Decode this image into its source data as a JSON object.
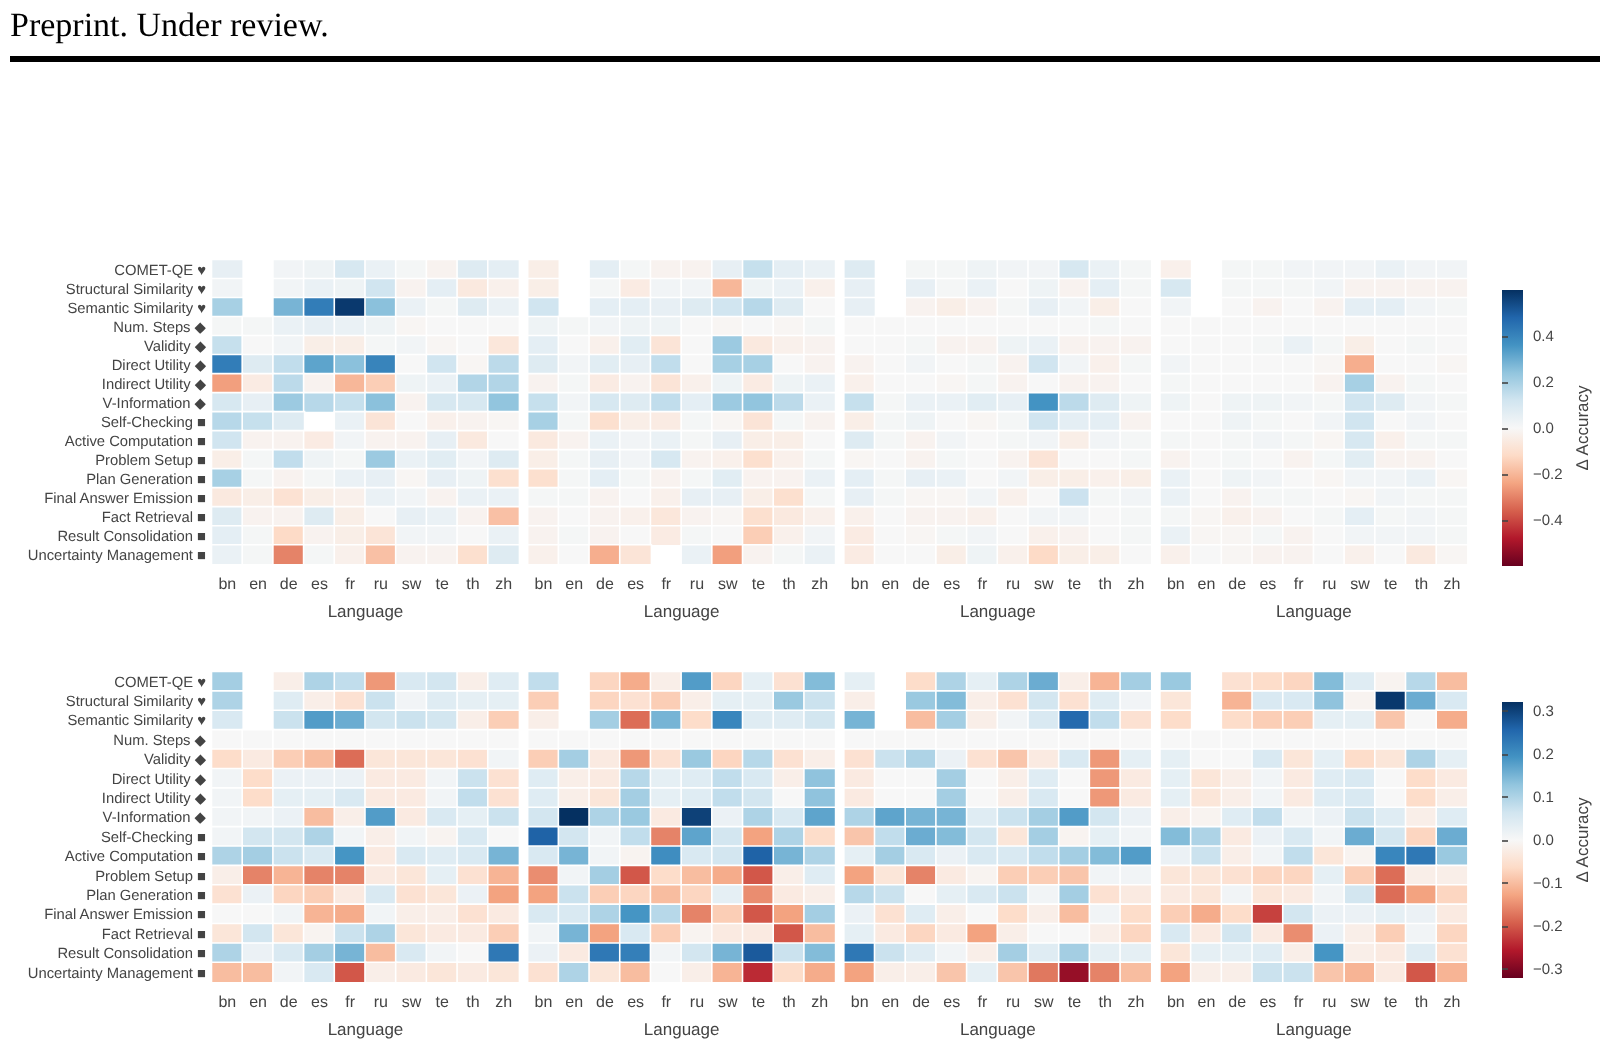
{
  "chart_data": [
    {
      "type": "heatmap",
      "annotations": [
        "Preprint. Under review."
      ],
      "xlabel": "Language",
      "categories": [
        "bn",
        "en",
        "de",
        "es",
        "fr",
        "ru",
        "sw",
        "te",
        "th",
        "zh",
        null,
        "bn",
        "en",
        "de",
        "es",
        "fr",
        "ru",
        "sw",
        "te",
        "th",
        "zh",
        null,
        "bn",
        "en",
        "de",
        "es",
        "fr",
        "ru",
        "sw",
        "te",
        "th",
        "zh",
        null,
        "bn",
        "en",
        "de",
        "es",
        "fr",
        "ru",
        "sw",
        "te",
        "th",
        "zh"
      ],
      "y_categories": [
        "COMET-QE ♥",
        "Structural Similarity ♥",
        "Semantic Similarity ♥",
        "Num. Steps ◆",
        "Validity ◆",
        "Direct Utility ◆",
        "Indirect Utility ◆",
        "V-Information ◆",
        "Self-Checking ■",
        "Active Computation ■",
        "Problem Setup ■",
        "Plan Generation ■",
        "Final Answer Emission ■",
        "Fact Retrieval ■",
        "Result Consolidation ■",
        "Uncertainty Management ■"
      ],
      "clim": [
        -0.6,
        0.6
      ],
      "clabel": "Δ Accuracy",
      "cticks": [
        0.4,
        0.2,
        {
          "value": 0,
          "label": "0.0"
        },
        {
          "value": -0.2,
          "label": "−0.2"
        },
        {
          "value": -0.4,
          "label": "−0.4"
        }
      ],
      "cells": [
        [
          0.05,
          null,
          0.02,
          0.03,
          0.1,
          0.04,
          0.01,
          -0.02,
          0.08,
          0.06,
          null,
          -0.04,
          null,
          0.06,
          0.01,
          -0.02,
          -0.02,
          0.05,
          0.14,
          0.06,
          0.04,
          null,
          0.08,
          null,
          0.01,
          0.01,
          0.03,
          0.02,
          0.02,
          0.1,
          0.04,
          0.01,
          null,
          -0.03,
          null,
          0.01,
          0.01,
          0.02,
          0.02,
          0.02,
          0.04,
          0.02,
          0.02
        ],
        [
          0.02,
          null,
          0.02,
          0.04,
          0.03,
          0.12,
          -0.02,
          0.06,
          -0.06,
          -0.03,
          null,
          -0.04,
          null,
          0.01,
          -0.05,
          0.02,
          0.02,
          -0.2,
          0.03,
          0.04,
          -0.03,
          null,
          0.05,
          null,
          0.05,
          0.01,
          0.04,
          0,
          0.03,
          -0.02,
          0.06,
          0.01,
          null,
          0.1,
          null,
          0.01,
          0.01,
          0.01,
          0.02,
          -0.02,
          -0.02,
          -0.02,
          -0.02
        ],
        [
          0.2,
          null,
          0.28,
          0.42,
          0.58,
          0.25,
          0.04,
          0.01,
          0.08,
          0.04,
          null,
          0.12,
          null,
          0.06,
          0.06,
          0.05,
          0.08,
          0.12,
          0.17,
          0.08,
          0,
          null,
          0.05,
          null,
          -0.02,
          -0.04,
          -0.02,
          0.01,
          0.05,
          0.02,
          -0.04,
          0,
          null,
          0.02,
          null,
          0,
          -0.02,
          0,
          -0.02,
          0.06,
          0.06,
          0.02,
          0.01
        ],
        [
          0.01,
          0.01,
          0.04,
          0.05,
          0.04,
          0.03,
          -0.01,
          0,
          0,
          0,
          null,
          0.03,
          0.01,
          0.02,
          0.03,
          0.03,
          0,
          -0.01,
          0,
          -0.01,
          0.01,
          null,
          0,
          0,
          0,
          0,
          0,
          0,
          0,
          0,
          0.01,
          0,
          null,
          0,
          0,
          0,
          0,
          0,
          0,
          0,
          0,
          0,
          0
        ],
        [
          0.14,
          0,
          0.02,
          -0.04,
          -0.04,
          0.01,
          0.02,
          -0.01,
          0,
          -0.07,
          null,
          0.06,
          0,
          -0.03,
          0.07,
          -0.08,
          0,
          0.22,
          -0.06,
          -0.03,
          -0.02,
          null,
          0,
          0,
          0.01,
          -0.02,
          -0.02,
          0.03,
          0.04,
          -0.02,
          -0.02,
          -0.02,
          null,
          0,
          0,
          0,
          0.01,
          0.04,
          0.01,
          -0.04,
          0,
          0.01,
          0
        ],
        [
          0.42,
          0.08,
          0.15,
          0.32,
          0.25,
          0.4,
          0,
          0.12,
          -0.01,
          0.16,
          null,
          0.08,
          0.02,
          0.07,
          0.05,
          0.15,
          0,
          0.2,
          0.2,
          0,
          -0.02,
          null,
          -0.02,
          0,
          0.02,
          0,
          0.01,
          -0.02,
          0.12,
          0.02,
          -0.03,
          0.01,
          null,
          0.02,
          0,
          0,
          0,
          0,
          -0.01,
          -0.22,
          0,
          0,
          -0.01
        ],
        [
          -0.25,
          -0.05,
          0.16,
          -0.02,
          -0.2,
          -0.15,
          0.03,
          0.04,
          0.18,
          0.18,
          null,
          -0.02,
          0.01,
          -0.05,
          -0.02,
          -0.08,
          -0.03,
          0.03,
          -0.05,
          0.03,
          0.04,
          null,
          -0.03,
          0,
          0,
          -0.01,
          0.01,
          -0.02,
          0,
          -0.02,
          -0.02,
          0,
          null,
          0.01,
          0,
          0,
          0,
          0,
          -0.02,
          0.2,
          -0.02,
          0.01,
          0
        ],
        [
          0.1,
          0.05,
          0.22,
          0.17,
          0.14,
          0.25,
          -0.02,
          0.1,
          0.1,
          0.24,
          null,
          0.14,
          0.02,
          0.1,
          0.08,
          0.15,
          0.06,
          0.22,
          0.24,
          0.16,
          0.04,
          null,
          0.14,
          0.01,
          0.04,
          0.04,
          0.07,
          0.05,
          0.36,
          0.16,
          0.08,
          0.03,
          null,
          0.03,
          0,
          0.03,
          0.03,
          0.02,
          0.01,
          0.12,
          0.08,
          0.02,
          0.01
        ],
        [
          0.17,
          0.14,
          0.08,
          null,
          0.04,
          -0.08,
          0,
          -0.03,
          -0.02,
          -0.01,
          null,
          0.2,
          0.01,
          -0.1,
          -0.04,
          -0.05,
          0.01,
          -0.01,
          -0.08,
          0.01,
          -0.02,
          null,
          -0.04,
          0.01,
          0.03,
          0,
          -0.01,
          0.01,
          0.12,
          0.06,
          0.06,
          -0.02,
          null,
          0,
          0,
          0.03,
          0.01,
          0,
          0.02,
          0.12,
          0,
          0.02,
          0
        ],
        [
          0.12,
          -0.02,
          -0.02,
          -0.05,
          0.02,
          -0.02,
          -0.02,
          0.05,
          -0.06,
          0,
          null,
          -0.06,
          -0.02,
          0.04,
          0.02,
          0.04,
          0.01,
          0.05,
          -0.04,
          -0.04,
          0,
          null,
          0.08,
          0.01,
          -0.02,
          0.02,
          0,
          0.01,
          0.02,
          -0.04,
          0.02,
          0.01,
          null,
          0.01,
          0,
          0.01,
          0.02,
          0.01,
          -0.01,
          0.1,
          -0.03,
          0.01,
          0.01
        ],
        [
          -0.04,
          0.01,
          0.15,
          0.03,
          0.01,
          0.22,
          0.04,
          0.07,
          0.02,
          0.08,
          null,
          -0.04,
          0.01,
          0.05,
          0.02,
          0.1,
          -0.02,
          -0.03,
          -0.1,
          -0.03,
          0.01,
          null,
          -0.01,
          0,
          -0.02,
          0.01,
          0,
          -0.02,
          -0.08,
          0,
          0,
          0.01,
          null,
          -0.02,
          0,
          0.01,
          0,
          -0.02,
          0.01,
          0.07,
          -0.02,
          -0.02,
          0
        ],
        [
          0.2,
          0.01,
          -0.02,
          0.01,
          0.04,
          0.05,
          -0.01,
          0.05,
          0.03,
          -0.1,
          null,
          -0.1,
          0.01,
          0.06,
          0.01,
          -0.02,
          0.01,
          0.07,
          -0.02,
          -0.02,
          0.04,
          null,
          0.06,
          0.01,
          0.05,
          0.04,
          0,
          0.02,
          -0.04,
          -0.04,
          -0.03,
          -0.04,
          null,
          0.04,
          0,
          0.03,
          0.02,
          0,
          -0.01,
          0.02,
          0.02,
          0.04,
          -0.01
        ],
        [
          -0.06,
          -0.04,
          -0.09,
          -0.04,
          -0.03,
          0.04,
          0.02,
          -0.02,
          0.04,
          0.04,
          null,
          0.01,
          0.01,
          -0.02,
          0,
          -0.03,
          0.05,
          0.05,
          -0.04,
          -0.1,
          0.01,
          null,
          0.05,
          0.01,
          -0.01,
          -0.01,
          0.02,
          -0.03,
          0,
          0.13,
          0.01,
          0.02,
          null,
          0.04,
          0,
          -0.02,
          0.01,
          0.01,
          0,
          -0.01,
          0.02,
          0.01,
          0.01
        ],
        [
          0.08,
          -0.02,
          -0.02,
          0.08,
          -0.04,
          0,
          0.05,
          0.04,
          -0.02,
          -0.18,
          null,
          -0.02,
          0,
          -0.02,
          -0.03,
          -0.07,
          -0.02,
          -0.01,
          -0.1,
          -0.06,
          -0.03,
          null,
          -0.03,
          0,
          -0.02,
          -0.02,
          -0.03,
          0,
          0.02,
          0.02,
          0,
          0.01,
          null,
          0.01,
          -0.01,
          -0.03,
          -0.02,
          0,
          0.01,
          0.06,
          0.01,
          0.02,
          0.01
        ],
        [
          0.06,
          0.01,
          -0.12,
          -0.02,
          -0.04,
          -0.08,
          0.02,
          0.02,
          0,
          0.04,
          null,
          -0.02,
          0.01,
          -0.02,
          0,
          -0.05,
          0.01,
          0,
          -0.15,
          -0.03,
          0.02,
          null,
          -0.05,
          0,
          -0.01,
          0.01,
          0.02,
          0,
          -0.03,
          -0.02,
          0,
          0.01,
          null,
          0.04,
          -0.01,
          -0.01,
          0.01,
          -0.02,
          0,
          0.02,
          0.02,
          0.02,
          0.01
        ],
        [
          0.04,
          0.01,
          -0.3,
          0.01,
          -0.03,
          -0.18,
          -0.02,
          -0.02,
          -0.1,
          0.08,
          null,
          -0.03,
          0,
          -0.22,
          -0.08,
          null,
          0.04,
          -0.25,
          -0.02,
          0.01,
          0.04,
          null,
          -0.05,
          0,
          0,
          -0.04,
          0.03,
          -0.03,
          -0.12,
          -0.04,
          -0.04,
          0,
          null,
          -0.03,
          0,
          -0.01,
          -0.02,
          -0.02,
          0,
          -0.03,
          0,
          -0.06,
          -0.01
        ]
      ]
    },
    {
      "type": "heatmap",
      "xlabel": "Language",
      "categories": [
        "bn",
        "en",
        "de",
        "es",
        "fr",
        "ru",
        "sw",
        "te",
        "th",
        "zh",
        null,
        "bn",
        "en",
        "de",
        "es",
        "fr",
        "ru",
        "sw",
        "te",
        "th",
        "zh",
        null,
        "bn",
        "en",
        "de",
        "es",
        "fr",
        "ru",
        "sw",
        "te",
        "th",
        "zh",
        null,
        "bn",
        "en",
        "de",
        "es",
        "fr",
        "ru",
        "sw",
        "te",
        "th",
        "zh"
      ],
      "y_categories": [
        "COMET-QE ♥",
        "Structural Similarity ♥",
        "Semantic Similarity ♥",
        "Num. Steps ◆",
        "Validity ◆",
        "Direct Utility ◆",
        "Indirect Utility ◆",
        "V-Information ◆",
        "Self-Checking ■",
        "Active Computation ■",
        "Problem Setup ■",
        "Plan Generation ■",
        "Final Answer Emission ■",
        "Fact Retrieval ■",
        "Result Consolidation ■",
        "Uncertainty Management ■"
      ],
      "clim": [
        -0.32,
        0.32
      ],
      "clabel": "Δ Accuracy",
      "cticks": [
        0.3,
        0.2,
        0.1,
        {
          "value": 0,
          "label": "0.0"
        },
        {
          "value": -0.1,
          "label": "−0.1"
        },
        {
          "value": -0.2,
          "label": "−0.2"
        },
        {
          "value": -0.3,
          "label": "−0.3"
        }
      ],
      "cells": [
        [
          0.11,
          null,
          -0.02,
          0.1,
          0.08,
          -0.14,
          0.05,
          0.06,
          -0.02,
          0.04,
          null,
          0.08,
          null,
          -0.07,
          -0.12,
          -0.02,
          0.18,
          -0.07,
          0.03,
          -0.05,
          0.14,
          null,
          0.03,
          null,
          -0.06,
          0.1,
          0.03,
          0.1,
          0.16,
          -0.02,
          -0.11,
          0.11,
          null,
          0.12,
          null,
          -0.05,
          -0.06,
          -0.07,
          0.14,
          0.04,
          -0.01,
          0.09,
          -0.1
        ],
        [
          0.1,
          null,
          0.04,
          -0.02,
          -0.05,
          0.07,
          0.01,
          0.04,
          0.03,
          0.03,
          null,
          -0.08,
          null,
          -0.07,
          -0.05,
          -0.08,
          -0.02,
          0.03,
          0.03,
          0.12,
          0.07,
          null,
          -0.02,
          null,
          0.12,
          0.14,
          -0.02,
          -0.05,
          0.06,
          -0.05,
          0.04,
          0.01,
          null,
          -0.04,
          null,
          -0.11,
          0.05,
          0.05,
          0.13,
          -0.01,
          0.31,
          0.16,
          0.05
        ],
        [
          0.05,
          null,
          0.07,
          0.18,
          0.16,
          0.06,
          0.07,
          0.06,
          -0.02,
          -0.08,
          null,
          -0.02,
          null,
          0.11,
          -0.18,
          0.15,
          -0.06,
          0.21,
          0.04,
          0.04,
          0.06,
          null,
          0.15,
          null,
          -0.1,
          0.11,
          -0.02,
          0.01,
          0.05,
          0.25,
          0.08,
          -0.05,
          null,
          -0.06,
          null,
          -0.06,
          -0.08,
          -0.08,
          0.03,
          0.03,
          -0.09,
          0,
          -0.12
        ],
        [
          0,
          0,
          0,
          0,
          0,
          0,
          0,
          0,
          0,
          0,
          null,
          0,
          0,
          0,
          0,
          0,
          0,
          0,
          0,
          0,
          0,
          null,
          0,
          0,
          0,
          0,
          0,
          0,
          0,
          0,
          0,
          0,
          null,
          0,
          0,
          0,
          0,
          0,
          0,
          0,
          0,
          0,
          0
        ],
        [
          -0.06,
          -0.03,
          -0.08,
          -0.1,
          -0.18,
          -0.04,
          -0.04,
          -0.04,
          -0.05,
          0.01,
          null,
          -0.08,
          0.11,
          -0.03,
          -0.14,
          -0.05,
          0.12,
          -0.07,
          0.09,
          -0.05,
          -0.02,
          null,
          -0.05,
          0.07,
          0.1,
          0.02,
          -0.05,
          -0.09,
          -0.03,
          0.05,
          -0.14,
          0.03,
          null,
          0.03,
          0,
          0,
          0.05,
          -0.04,
          0.03,
          -0.06,
          -0.04,
          0.1,
          0.03
        ],
        [
          0.01,
          -0.06,
          0.02,
          0.02,
          0.02,
          -0.03,
          -0.03,
          0.01,
          0.07,
          -0.05,
          null,
          0.04,
          -0.02,
          -0.03,
          0.09,
          0.03,
          0.04,
          0.08,
          0.05,
          -0.02,
          0.13,
          null,
          -0.03,
          0,
          0,
          0.11,
          0,
          -0.02,
          0.04,
          0,
          -0.14,
          -0.03,
          null,
          0.03,
          -0.04,
          -0.02,
          0.01,
          -0.03,
          0.04,
          0.05,
          0,
          -0.06,
          -0.03
        ],
        [
          0.01,
          -0.06,
          0.03,
          0.03,
          0.05,
          -0.03,
          -0.03,
          0.01,
          0.08,
          -0.05,
          null,
          0.04,
          -0.02,
          -0.04,
          0.11,
          0.03,
          0.04,
          0.08,
          0.06,
          0,
          0.13,
          null,
          -0.03,
          0,
          0,
          0.11,
          0,
          -0.02,
          0.05,
          0,
          -0.14,
          -0.03,
          null,
          0.03,
          -0.04,
          -0.02,
          0.01,
          -0.03,
          0.04,
          0.05,
          0,
          -0.06,
          -0.02
        ],
        [
          0.01,
          0.01,
          0.02,
          -0.1,
          -0.02,
          0.18,
          -0.03,
          0.05,
          0.03,
          0.07,
          null,
          0.06,
          0.32,
          0.1,
          0.12,
          -0.03,
          0.3,
          0.02,
          0.1,
          0.05,
          0.17,
          null,
          0.1,
          0.17,
          0.15,
          0.15,
          0.04,
          0.07,
          0.11,
          0.18,
          0.06,
          0.02,
          null,
          -0.02,
          -0.01,
          0.04,
          0.08,
          0.01,
          0.02,
          0.07,
          0.04,
          -0.02,
          0.04
        ],
        [
          0.01,
          0.06,
          0.06,
          0.1,
          0.01,
          -0.02,
          0.01,
          -0.01,
          0.05,
          0,
          null,
          0.26,
          0.06,
          0.01,
          0.08,
          -0.16,
          0.17,
          0.06,
          -0.13,
          0.1,
          -0.06,
          null,
          -0.09,
          0.08,
          0.16,
          0.14,
          0.06,
          -0.04,
          0.11,
          -0.01,
          0.03,
          0.01,
          null,
          0.14,
          0.1,
          -0.03,
          0.02,
          0.05,
          0.01,
          0.16,
          0.06,
          -0.07,
          0.16
        ],
        [
          0.1,
          0.11,
          0.07,
          0.05,
          0.19,
          -0.03,
          0.05,
          0.04,
          0.05,
          0.15,
          null,
          0.05,
          0.15,
          0.01,
          -0.01,
          0.2,
          0.05,
          0.06,
          0.26,
          0.15,
          0.1,
          null,
          0.03,
          0.11,
          0.05,
          0.02,
          0.05,
          0.05,
          0.08,
          0.11,
          0.14,
          0.18,
          null,
          0.02,
          0.07,
          -0.02,
          0.01,
          0.08,
          -0.04,
          -0.01,
          0.21,
          0.23,
          0.12
        ],
        [
          -0.02,
          -0.16,
          -0.11,
          -0.16,
          -0.16,
          -0.03,
          -0.04,
          0.03,
          -0.05,
          -0.11,
          null,
          -0.15,
          0.01,
          0.11,
          -0.2,
          -0.06,
          -0.1,
          -0.12,
          -0.2,
          -0.02,
          0.04,
          null,
          -0.13,
          -0.04,
          -0.16,
          -0.03,
          -0.01,
          -0.08,
          -0.08,
          -0.09,
          0.01,
          0.01,
          null,
          -0.04,
          -0.04,
          -0.05,
          -0.07,
          -0.07,
          0.03,
          -0.08,
          -0.18,
          -0.02,
          -0.02
        ],
        [
          -0.05,
          0.02,
          -0.07,
          -0.08,
          -0.03,
          0.05,
          -0.05,
          -0.04,
          0.02,
          -0.13,
          null,
          -0.13,
          0.07,
          -0.08,
          -0.07,
          -0.1,
          -0.07,
          0.03,
          -0.15,
          -0.03,
          -0.02,
          null,
          0.09,
          0.07,
          0,
          0.03,
          0.05,
          0.07,
          0.01,
          0.11,
          -0.05,
          -0.03,
          null,
          -0.03,
          -0.04,
          0.01,
          -0.04,
          -0.03,
          0.01,
          0.06,
          -0.18,
          -0.13,
          -0.07
        ],
        [
          0,
          0,
          0.01,
          -0.11,
          -0.12,
          0.01,
          -0.02,
          -0.02,
          -0.05,
          -0.03,
          null,
          0.05,
          0.05,
          0.1,
          0.19,
          0.09,
          -0.16,
          -0.08,
          -0.2,
          -0.13,
          0.11,
          null,
          0.02,
          -0.05,
          0.04,
          -0.02,
          0,
          -0.06,
          -0.02,
          -0.1,
          0.01,
          -0.06,
          null,
          -0.08,
          -0.12,
          -0.06,
          -0.22,
          0.06,
          0.02,
          0.02,
          0.03,
          0.02,
          -0.03
        ],
        [
          -0.04,
          0.06,
          -0.04,
          -0.01,
          0.07,
          0.1,
          -0.04,
          -0.03,
          -0.03,
          -0.08,
          null,
          0.01,
          0.15,
          -0.13,
          0.05,
          -0.08,
          -0.01,
          -0.03,
          -0.03,
          -0.2,
          -0.1,
          null,
          0.03,
          -0.03,
          -0.07,
          -0.03,
          -0.13,
          -0.02,
          0,
          0,
          -0.02,
          -0.07,
          null,
          0.05,
          -0.03,
          0.06,
          -0.03,
          -0.15,
          0.02,
          -0.02,
          -0.08,
          0.01,
          -0.07
        ],
        [
          0.1,
          0.02,
          0.05,
          0.11,
          0.15,
          -0.1,
          0.05,
          0.01,
          0,
          0.23,
          null,
          0.02,
          -0.03,
          0.23,
          0.22,
          0.01,
          0.06,
          0.15,
          0.27,
          0.07,
          0.14,
          null,
          0.23,
          0.07,
          0.04,
          0.01,
          -0.02,
          0.11,
          0.04,
          0.11,
          0.03,
          0.03,
          null,
          -0.04,
          0.03,
          0.03,
          0.04,
          -0.02,
          0.19,
          -0.02,
          -0.03,
          0.04,
          -0.05
        ],
        [
          -0.1,
          -0.1,
          0.01,
          0.05,
          -0.2,
          -0.02,
          -0.03,
          -0.04,
          -0.03,
          -0.04,
          null,
          -0.05,
          0.1,
          -0.04,
          -0.1,
          0,
          -0.02,
          -0.11,
          -0.24,
          -0.06,
          -0.12,
          null,
          -0.13,
          -0.02,
          -0.02,
          -0.09,
          0.03,
          -0.09,
          -0.17,
          -0.28,
          -0.16,
          -0.1,
          null,
          -0.13,
          -0.02,
          -0.02,
          0.07,
          0.07,
          -0.09,
          -0.11,
          -0.03,
          -0.2,
          -0.11
        ]
      ]
    }
  ]
}
